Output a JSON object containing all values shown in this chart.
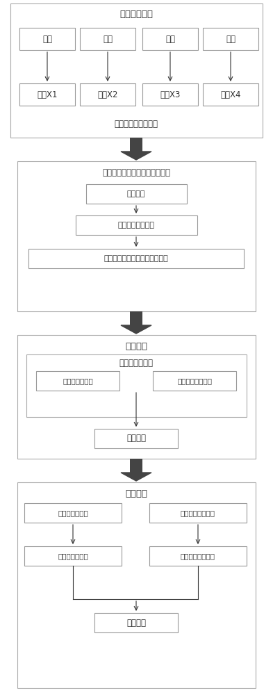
{
  "bg_color": "#ffffff",
  "box_edge_color": "#999999",
  "box_fill_color": "#ffffff",
  "outer_box_edge_color": "#aaaaaa",
  "outer_box_fill_color": "#ffffff",
  "arrow_color": "#333333",
  "fat_arrow_color": "#444444",
  "text_color": "#333333",
  "font_size": 8.5,
  "title_font_size": 9.5,
  "fig_width": 3.93,
  "fig_height": 10.0,
  "section1_title": "在线监测数据",
  "row1_boxes": [
    "流量",
    "温度",
    "压力",
    "液位"
  ],
  "row2_boxes": [
    "集合X1",
    "集合X2",
    "集合X3",
    "集合X4"
  ],
  "section1_bottom_label": "过程监控数据预处理",
  "section2_title": "基于特征参数的异常点检测模型",
  "section2_boxes": [
    "特征提取",
    "特征空间建模分析",
    "依据检测函数判断是否为异常点"
  ],
  "section3_title": "异常处理",
  "section3_inner_title": "异常点统计分类",
  "section3_pair": [
    "可恢复性异常点",
    "不可恢复性异常点"
  ],
  "section3_bottom_box": "报警警示",
  "section4_title": "异常验证",
  "section4_pair1": [
    "可恢复性异常点",
    "不可恢复性异常点"
  ],
  "section4_pair2": [
    "误差异常值验证",
    "检定装置检定验证"
  ],
  "section4_bottom_box": "验证结果"
}
